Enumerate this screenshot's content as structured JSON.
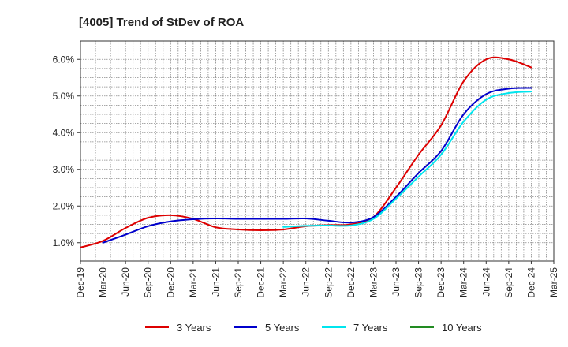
{
  "chart_data": {
    "type": "line",
    "title": "[4005]  Trend of StDev of ROA",
    "xlabel": "",
    "ylabel": "",
    "x_ticks": [
      "Dec-19",
      "Mar-20",
      "Jun-20",
      "Sep-20",
      "Dec-20",
      "Mar-21",
      "Jun-21",
      "Sep-21",
      "Dec-21",
      "Mar-22",
      "Jun-22",
      "Sep-22",
      "Dec-22",
      "Mar-23",
      "Jun-23",
      "Sep-23",
      "Dec-23",
      "Mar-24",
      "Jun-24",
      "Sep-24",
      "Dec-24",
      "Mar-25"
    ],
    "y_ticks": [
      "1.0%",
      "2.0%",
      "3.0%",
      "4.0%",
      "5.0%",
      "6.0%"
    ],
    "y_tick_values": [
      1,
      2,
      3,
      4,
      5,
      6
    ],
    "ylim": [
      0.5,
      6.5
    ],
    "grid": true,
    "legend_position": "bottom",
    "series": [
      {
        "name": "3 Years",
        "color": "#dd0000",
        "x": [
          "Dec-19",
          "Mar-20",
          "Jun-20",
          "Sep-20",
          "Dec-20",
          "Mar-21",
          "Jun-21",
          "Sep-21",
          "Dec-21",
          "Mar-22",
          "Jun-22",
          "Sep-22",
          "Dec-22",
          "Mar-23",
          "Jun-23",
          "Sep-23",
          "Dec-23",
          "Mar-24",
          "Jun-24",
          "Sep-24",
          "Dec-24"
        ],
        "values": [
          0.87,
          1.05,
          1.4,
          1.68,
          1.75,
          1.65,
          1.42,
          1.36,
          1.34,
          1.36,
          1.45,
          1.48,
          1.5,
          1.7,
          2.5,
          3.4,
          4.2,
          5.4,
          6.0,
          6.0,
          5.78
        ]
      },
      {
        "name": "5 Years",
        "color": "#0000cc",
        "x": [
          "Mar-20",
          "Jun-20",
          "Sep-20",
          "Dec-20",
          "Mar-21",
          "Jun-21",
          "Sep-21",
          "Dec-21",
          "Mar-22",
          "Jun-22",
          "Sep-22",
          "Dec-22",
          "Mar-23",
          "Jun-23",
          "Sep-23",
          "Dec-23",
          "Mar-24",
          "Jun-24",
          "Sep-24",
          "Dec-24"
        ],
        "values": [
          1.0,
          1.22,
          1.45,
          1.58,
          1.64,
          1.66,
          1.65,
          1.65,
          1.65,
          1.66,
          1.6,
          1.55,
          1.7,
          2.25,
          2.9,
          3.5,
          4.5,
          5.05,
          5.2,
          5.22
        ]
      },
      {
        "name": "7 Years",
        "color": "#00e5ee",
        "x": [
          "Mar-22",
          "Jun-22",
          "Sep-22",
          "Dec-22",
          "Mar-23",
          "Jun-23",
          "Sep-23",
          "Dec-23",
          "Mar-24",
          "Jun-24",
          "Sep-24",
          "Dec-24"
        ],
        "values": [
          1.43,
          1.46,
          1.47,
          1.47,
          1.65,
          2.2,
          2.8,
          3.4,
          4.3,
          4.9,
          5.08,
          5.12
        ]
      },
      {
        "name": "10 Years",
        "color": "#228b22",
        "x": [],
        "values": []
      }
    ]
  }
}
